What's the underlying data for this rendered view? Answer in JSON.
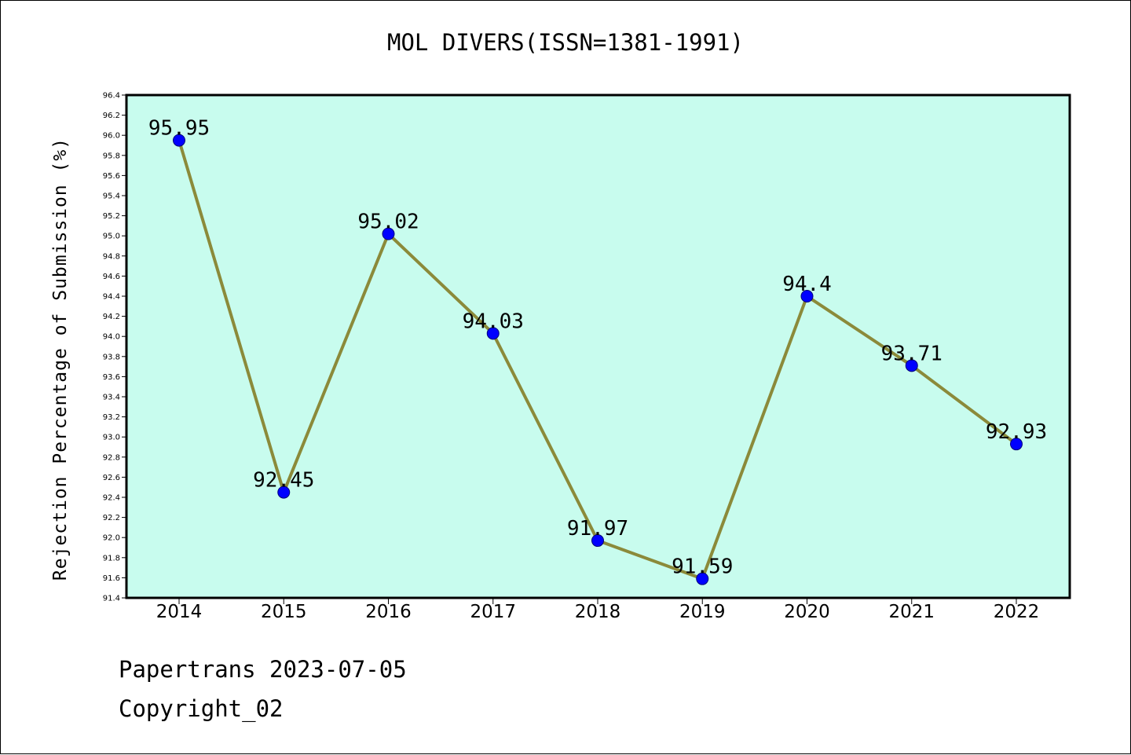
{
  "chart_data": {
    "type": "line",
    "title": "MOL DIVERS(ISSN=1381-1991)",
    "xlabel": "",
    "ylabel": "Rejection Percentage of Submission (%)",
    "categories": [
      "2014",
      "2015",
      "2016",
      "2017",
      "2018",
      "2019",
      "2020",
      "2021",
      "2022"
    ],
    "series": [
      {
        "values": [
          95.95,
          92.45,
          95.02,
          94.03,
          91.97,
          91.59,
          94.4,
          93.71,
          92.93
        ],
        "data_labels": [
          "95.95",
          "92.45",
          "95.02",
          "94.03",
          "91.97",
          "91.59",
          "94.4",
          "93.71",
          "92.93"
        ],
        "line_color": "#8b8a3a",
        "marker_color": "#0000ff"
      }
    ],
    "ylim": [
      91.4,
      96.4
    ],
    "yticks": [
      "91.4",
      "91.6",
      "91.8",
      "92.0",
      "92.2",
      "92.4",
      "92.6",
      "92.8",
      "93.0",
      "93.2",
      "93.4",
      "93.6",
      "93.8",
      "94.0",
      "94.2",
      "94.4",
      "94.6",
      "94.8",
      "95.0",
      "95.2",
      "95.4",
      "95.6",
      "95.8",
      "96.0",
      "96.2",
      "96.4"
    ],
    "grid": false,
    "plot_background": "#c8fcee"
  },
  "footer": {
    "date_line": "Papertrans 2023-07-05",
    "copyright_line": "Copyright_02"
  }
}
